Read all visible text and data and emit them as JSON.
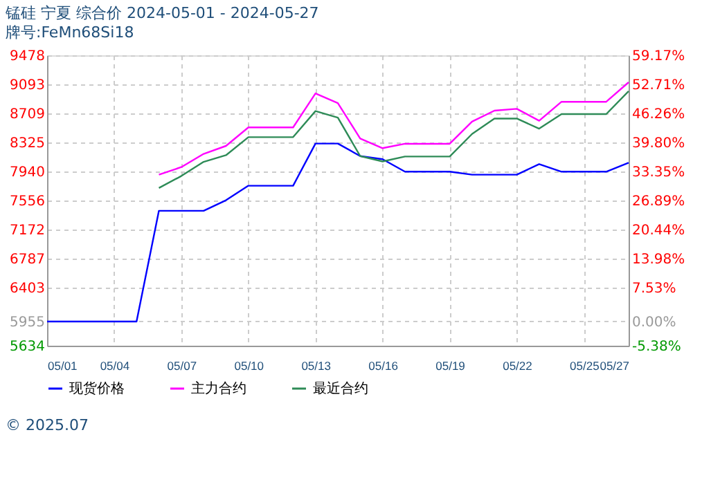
{
  "chart_data": {
    "type": "line",
    "title": "锰硅 宁夏 综合价 2024-05-01 - 2024-05-27",
    "subtitle": "牌号:FeMn68Si18",
    "x": [
      "2024-05-01",
      "2024-05-02",
      "2024-05-03",
      "2024-05-04",
      "2024-05-05",
      "2024-05-06",
      "2024-05-07",
      "2024-05-08",
      "2024-05-09",
      "2024-05-10",
      "2024-05-11",
      "2024-05-12",
      "2024-05-13",
      "2024-05-14",
      "2024-05-15",
      "2024-05-16",
      "2024-05-17",
      "2024-05-18",
      "2024-05-19",
      "2024-05-20",
      "2024-05-21",
      "2024-05-22",
      "2024-05-23",
      "2024-05-24",
      "2024-05-25",
      "2024-05-26",
      "2024-05-27"
    ],
    "series": [
      {
        "name": "现货价格",
        "color": "#0000ff",
        "values": [
          5955,
          5955,
          5955,
          5955,
          5955,
          7420,
          7420,
          7420,
          7560,
          7752,
          7752,
          7752,
          8310,
          8310,
          8144,
          8103,
          7938,
          7938,
          7938,
          7898,
          7898,
          7898,
          8038,
          7938,
          7938,
          7938,
          8056
        ]
      },
      {
        "name": "主力合约",
        "color": "#ff00ff",
        "values": [
          null,
          null,
          null,
          null,
          null,
          7898,
          7998,
          8173,
          8279,
          8524,
          8524,
          8524,
          8974,
          8846,
          8377,
          8249,
          8307,
          8307,
          8307,
          8600,
          8746,
          8770,
          8612,
          8863,
          8863,
          8863,
          9121
        ]
      },
      {
        "name": "最近合约",
        "color": "#2e8b57",
        "values": [
          null,
          null,
          null,
          null,
          null,
          7722,
          7880,
          8068,
          8156,
          8395,
          8395,
          8395,
          8740,
          8653,
          8144,
          8073,
          8138,
          8138,
          8138,
          8437,
          8641,
          8641,
          8507,
          8700,
          8700,
          8700,
          9004
        ]
      }
    ],
    "xticks": [
      {
        "value": "2024-05-01",
        "label": "05/01"
      },
      {
        "value": "2024-05-04",
        "label": "05/04"
      },
      {
        "value": "2024-05-07",
        "label": "05/07"
      },
      {
        "value": "2024-05-10",
        "label": "05/10"
      },
      {
        "value": "2024-05-13",
        "label": "05/13"
      },
      {
        "value": "2024-05-16",
        "label": "05/16"
      },
      {
        "value": "2024-05-19",
        "label": "05/19"
      },
      {
        "value": "2024-05-22",
        "label": "05/22"
      },
      {
        "value": "2024-05-25",
        "label": "05/25"
      },
      {
        "value": "2024-05-27",
        "label": "05/27"
      }
    ],
    "xlim": [
      "2024-05-01",
      "2024-05-27"
    ],
    "ylim": [
      5634,
      9478
    ],
    "yticks": [
      5634,
      5955,
      6403,
      6787,
      7172,
      7556,
      7940,
      8325,
      8709,
      9093,
      9478
    ],
    "y2lim": [
      -5.38,
      59.17
    ],
    "y2ticks": [
      {
        "value": -5.38,
        "label": "-5.38%"
      },
      {
        "value": 0,
        "label": "0.00%"
      },
      {
        "value": 7.53,
        "label": "7.53%"
      },
      {
        "value": 13.98,
        "label": "13.98%"
      },
      {
        "value": 20.44,
        "label": "20.44%"
      },
      {
        "value": 26.89,
        "label": "26.89%"
      },
      {
        "value": 33.35,
        "label": "33.35%"
      },
      {
        "value": 39.8,
        "label": "39.80%"
      },
      {
        "value": 46.26,
        "label": "46.26%"
      },
      {
        "value": 52.71,
        "label": "52.71%"
      },
      {
        "value": 59.17,
        "label": "59.17%"
      }
    ],
    "grid": true,
    "legend": "bottom",
    "marker": "none",
    "line_style": "solid",
    "annotations": [
      "© 2025.07"
    ]
  }
}
